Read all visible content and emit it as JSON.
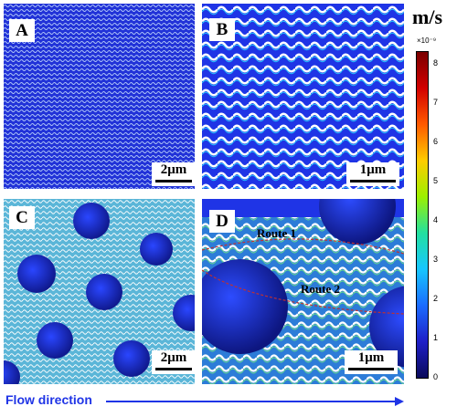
{
  "panels": {
    "a": {
      "label": "A",
      "scale": "2μm"
    },
    "b": {
      "label": "B",
      "scale": "1μm"
    },
    "c": {
      "label": "C",
      "scale": "2μm"
    },
    "d": {
      "label": "D",
      "scale": "1μm",
      "route1": "Route 1",
      "route2": "Route 2"
    }
  },
  "colorbar": {
    "unit": "m/s",
    "multiplier": "×10⁻⁹",
    "ticks": [
      "8",
      "7",
      "6",
      "5",
      "4",
      "3",
      "2",
      "1",
      "0"
    ],
    "colors": [
      "#7a0000",
      "#d20000",
      "#ff5a00",
      "#ffcc00",
      "#9cf000",
      "#22e0a0",
      "#17c6ff",
      "#1b6cff",
      "#1f1fc8",
      "#0a0a5a"
    ]
  },
  "flow_label": "Flow direction",
  "colors": {
    "field_blue": "#1f34e6",
    "flow_blue": "#1f34e6"
  }
}
